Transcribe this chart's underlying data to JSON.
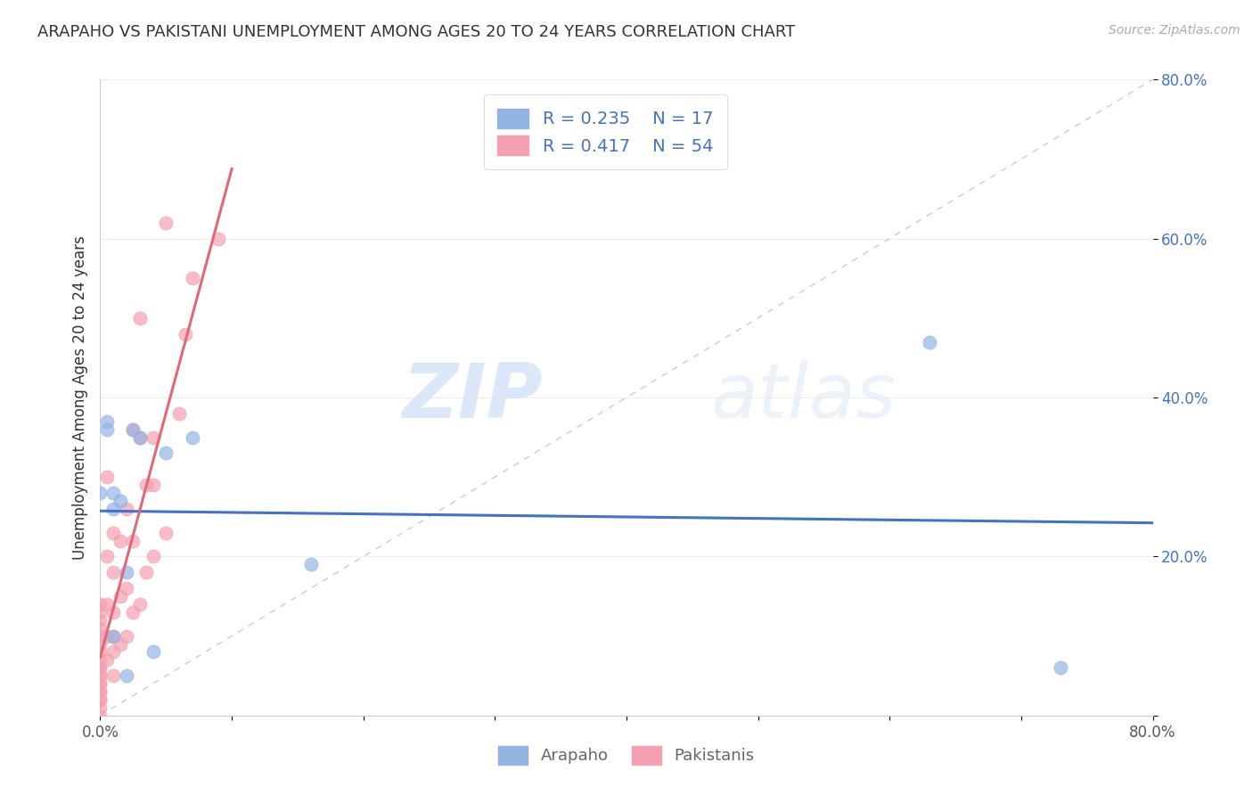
{
  "title": "ARAPAHO VS PAKISTANI UNEMPLOYMENT AMONG AGES 20 TO 24 YEARS CORRELATION CHART",
  "source": "Source: ZipAtlas.com",
  "ylabel": "Unemployment Among Ages 20 to 24 years",
  "xlim": [
    0.0,
    0.8
  ],
  "ylim": [
    0.0,
    0.8
  ],
  "arapaho_color": "#92b4e3",
  "pakistani_color": "#f4a0b0",
  "trendline_arapaho_color": "#4472c4",
  "trendline_pakistani_color": "#e06878",
  "watermark_zip": "ZIP",
  "watermark_atlas": "atlas",
  "legend_r_arapaho": "R = 0.235",
  "legend_n_arapaho": "N = 17",
  "legend_r_pakistani": "R = 0.417",
  "legend_n_pakistani": "N = 54",
  "arapaho_x": [
    0.0,
    0.005,
    0.005,
    0.01,
    0.01,
    0.01,
    0.015,
    0.02,
    0.02,
    0.025,
    0.03,
    0.04,
    0.05,
    0.07,
    0.16,
    0.63,
    0.73
  ],
  "arapaho_y": [
    0.28,
    0.37,
    0.36,
    0.26,
    0.28,
    0.1,
    0.27,
    0.05,
    0.18,
    0.36,
    0.35,
    0.08,
    0.33,
    0.35,
    0.19,
    0.47,
    0.06
  ],
  "pakistani_x": [
    0.0,
    0.0,
    0.0,
    0.0,
    0.0,
    0.0,
    0.0,
    0.0,
    0.0,
    0.0,
    0.0,
    0.0,
    0.0,
    0.0,
    0.0,
    0.0,
    0.0,
    0.0,
    0.0,
    0.0,
    0.005,
    0.005,
    0.005,
    0.005,
    0.005,
    0.01,
    0.01,
    0.01,
    0.01,
    0.01,
    0.01,
    0.015,
    0.015,
    0.015,
    0.02,
    0.02,
    0.02,
    0.025,
    0.025,
    0.025,
    0.03,
    0.03,
    0.03,
    0.035,
    0.035,
    0.04,
    0.04,
    0.04,
    0.05,
    0.05,
    0.06,
    0.065,
    0.07,
    0.09
  ],
  "pakistani_y": [
    0.0,
    0.01,
    0.02,
    0.02,
    0.03,
    0.03,
    0.04,
    0.04,
    0.05,
    0.05,
    0.06,
    0.06,
    0.07,
    0.08,
    0.09,
    0.1,
    0.11,
    0.12,
    0.13,
    0.14,
    0.07,
    0.1,
    0.14,
    0.2,
    0.3,
    0.05,
    0.08,
    0.1,
    0.13,
    0.18,
    0.23,
    0.09,
    0.15,
    0.22,
    0.1,
    0.16,
    0.26,
    0.13,
    0.22,
    0.36,
    0.14,
    0.35,
    0.5,
    0.18,
    0.29,
    0.2,
    0.29,
    0.35,
    0.23,
    0.62,
    0.38,
    0.48,
    0.55,
    0.6
  ],
  "diagonal_line_color": "#cccccc",
  "background_color": "#ffffff",
  "grid_color": "#eeeeee",
  "ytick_color": "#4472c4",
  "xtick_color": "#555555"
}
